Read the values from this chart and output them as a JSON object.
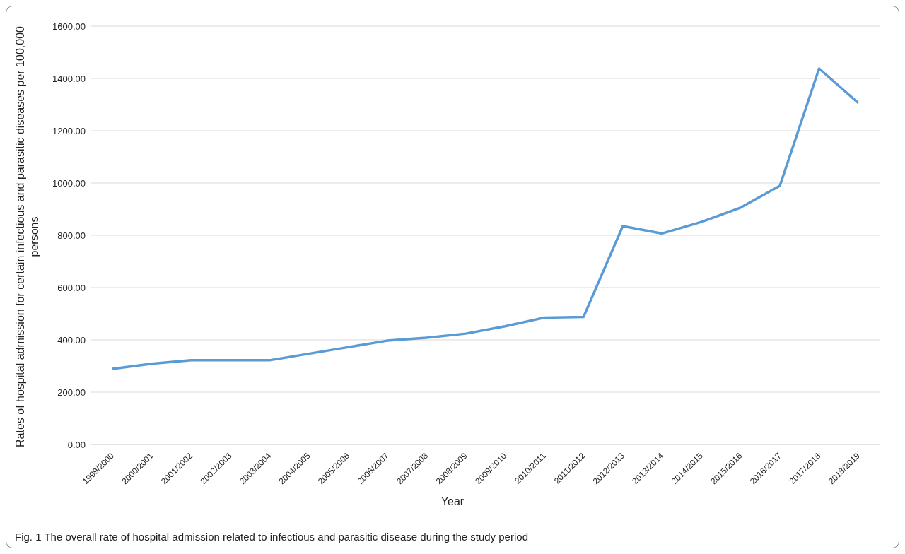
{
  "chart_data": {
    "type": "line",
    "xlabel": "Year",
    "ylabel": "Rates of hospital admission for certain infectious and parasitic diseases per 100,000 persons",
    "annotations": [
      "Fig. 1  The overall rate of hospital admission related to infectious and parasitic disease during the study period"
    ],
    "categories": [
      "1999/2000",
      "2000/2001",
      "2001/2002",
      "2002/2003",
      "2003/2004",
      "2004/2005",
      "2005/2006",
      "2006/2007",
      "2007/2008",
      "2008/2009",
      "2009/2010",
      "2010/2011",
      "2011/2012",
      "2012/2013",
      "2013/2014",
      "2014/2015",
      "2015/2016",
      "2016/2017",
      "2017/2018",
      "2018/2019"
    ],
    "series": [
      {
        "color": "#5b9bd5",
        "values": [
          289,
          309,
          322,
          322,
          322,
          347,
          372,
          397,
          408,
          424,
          452,
          485,
          488,
          835,
          807,
          851,
          906,
          989,
          1438,
          1306
        ]
      }
    ],
    "ylim": [
      0,
      1600
    ],
    "yticks": [
      {
        "value": 0,
        "label": "0.00"
      },
      {
        "value": 200,
        "label": "200.00"
      },
      {
        "value": 400,
        "label": "400.00"
      },
      {
        "value": 600,
        "label": "600.00"
      },
      {
        "value": 800,
        "label": "800.00"
      },
      {
        "value": 1000,
        "label": "1000.00"
      },
      {
        "value": 1200,
        "label": "1200.00"
      },
      {
        "value": 1400,
        "label": "1400.00"
      },
      {
        "value": 1600,
        "label": "1600.00"
      }
    ],
    "grid": "y",
    "marker": "none",
    "line_style": "solid"
  }
}
